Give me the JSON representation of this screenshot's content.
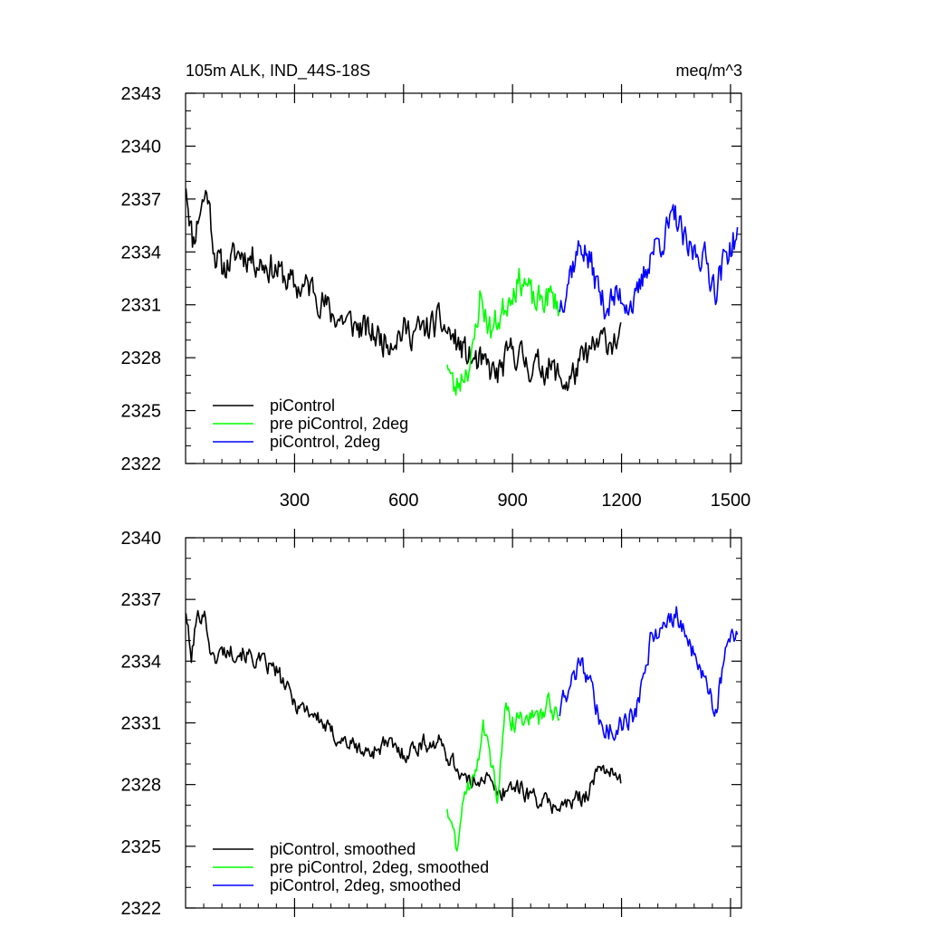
{
  "chart_data": [
    {
      "type": "line",
      "title": "105m ALK, IND_44S-18S",
      "units": "meq/m^3",
      "xlim": [
        0,
        1530
      ],
      "ylim": [
        2322,
        2343
      ],
      "xticks": [
        300,
        600,
        900,
        1200,
        1500
      ],
      "xtick_labels": [
        "300",
        "600",
        "900",
        "1200",
        "1500"
      ],
      "yticks": [
        2322,
        2325,
        2328,
        2331,
        2334,
        2337,
        2340,
        2343
      ],
      "ytick_labels": [
        "2322",
        "2325",
        "2328",
        "2331",
        "2334",
        "2337",
        "2340",
        "2343"
      ],
      "legend_position": "bottom-left",
      "series": [
        {
          "name": "piControl",
          "color": "#000000",
          "x_start": 1,
          "x_end": 1200,
          "anchors": [
            [
              1,
              2338
            ],
            [
              20,
              2334.5
            ],
            [
              40,
              2336.5
            ],
            [
              60,
              2337.5
            ],
            [
              80,
              2334
            ],
            [
              100,
              2333
            ],
            [
              150,
              2334
            ],
            [
              200,
              2333.5
            ],
            [
              250,
              2333
            ],
            [
              300,
              2332
            ],
            [
              350,
              2332
            ],
            [
              400,
              2330.5
            ],
            [
              450,
              2330
            ],
            [
              500,
              2329.5
            ],
            [
              550,
              2329
            ],
            [
              600,
              2329.5
            ],
            [
              650,
              2329.5
            ],
            [
              700,
              2330
            ],
            [
              740,
              2329
            ],
            [
              780,
              2328
            ],
            [
              820,
              2327.5
            ],
            [
              860,
              2327
            ],
            [
              900,
              2328.5
            ],
            [
              950,
              2327.5
            ],
            [
              1000,
              2327.5
            ],
            [
              1050,
              2326.5
            ],
            [
              1100,
              2328
            ],
            [
              1150,
              2329
            ],
            [
              1200,
              2329
            ]
          ],
          "noise": 1.4,
          "seed": 11
        },
        {
          "name": "pre piControl, 2deg",
          "color": "#00ff00",
          "x_start": 720,
          "x_end": 1030,
          "anchors": [
            [
              720,
              2328
            ],
            [
              740,
              2326
            ],
            [
              760,
              2327
            ],
            [
              790,
              2328
            ],
            [
              810,
              2331.5
            ],
            [
              840,
              2329.5
            ],
            [
              870,
              2330.5
            ],
            [
              900,
              2332
            ],
            [
              930,
              2332.5
            ],
            [
              960,
              2331
            ],
            [
              1000,
              2331.5
            ],
            [
              1030,
              2331
            ]
          ],
          "noise": 1.4,
          "seed": 23
        },
        {
          "name": "piControl, 2deg",
          "color": "#0000ff",
          "x_start": 1030,
          "x_end": 1520,
          "anchors": [
            [
              1030,
              2331
            ],
            [
              1060,
              2333
            ],
            [
              1090,
              2334.5
            ],
            [
              1120,
              2333
            ],
            [
              1150,
              2331
            ],
            [
              1200,
              2331.5
            ],
            [
              1240,
              2331
            ],
            [
              1280,
              2334
            ],
            [
              1320,
              2335
            ],
            [
              1350,
              2336
            ],
            [
              1380,
              2334
            ],
            [
              1420,
              2334
            ],
            [
              1460,
              2332
            ],
            [
              1490,
              2334
            ],
            [
              1520,
              2335
            ]
          ],
          "noise": 1.5,
          "seed": 37
        }
      ]
    },
    {
      "type": "line",
      "title": "",
      "xlim": [
        0,
        1530
      ],
      "ylim": [
        2322,
        2340
      ],
      "xticks": [
        300,
        600,
        900,
        1200,
        1500
      ],
      "yticks": [
        2322,
        2325,
        2328,
        2331,
        2334,
        2337,
        2340
      ],
      "ytick_labels": [
        "2322",
        "2325",
        "2328",
        "2331",
        "2334",
        "2337",
        "2340"
      ],
      "legend_position": "bottom-left",
      "series": [
        {
          "name": "piControl, smoothed",
          "color": "#000000",
          "x_start": 1,
          "x_end": 1200,
          "anchors": [
            [
              1,
              2336.5
            ],
            [
              15,
              2334
            ],
            [
              30,
              2336
            ],
            [
              50,
              2336.5
            ],
            [
              75,
              2334
            ],
            [
              100,
              2334.5
            ],
            [
              150,
              2334.5
            ],
            [
              200,
              2334
            ],
            [
              250,
              2333.5
            ],
            [
              300,
              2332
            ],
            [
              350,
              2331.5
            ],
            [
              400,
              2330.5
            ],
            [
              450,
              2330
            ],
            [
              500,
              2329.5
            ],
            [
              550,
              2330
            ],
            [
              600,
              2329.5
            ],
            [
              650,
              2330
            ],
            [
              700,
              2330
            ],
            [
              740,
              2329
            ],
            [
              780,
              2328
            ],
            [
              820,
              2328.5
            ],
            [
              860,
              2327.5
            ],
            [
              900,
              2328
            ],
            [
              950,
              2327.5
            ],
            [
              1000,
              2327
            ],
            [
              1050,
              2327
            ],
            [
              1100,
              2327.5
            ],
            [
              1150,
              2329
            ],
            [
              1200,
              2328
            ]
          ],
          "noise": 0.7,
          "seed": 101
        },
        {
          "name": "pre piControl, 2deg, smoothed",
          "color": "#00ff00",
          "x_start": 720,
          "x_end": 1030,
          "anchors": [
            [
              720,
              2327
            ],
            [
              745,
              2325
            ],
            [
              770,
              2327.5
            ],
            [
              800,
              2329
            ],
            [
              820,
              2331
            ],
            [
              840,
              2329
            ],
            [
              860,
              2327.5
            ],
            [
              880,
              2331.5
            ],
            [
              910,
              2331
            ],
            [
              940,
              2331.5
            ],
            [
              970,
              2331
            ],
            [
              1000,
              2332
            ],
            [
              1030,
              2331
            ]
          ],
          "noise": 0.8,
          "seed": 131
        },
        {
          "name": "piControl, 2deg, smoothed",
          "color": "#0000ff",
          "x_start": 1030,
          "x_end": 1520,
          "anchors": [
            [
              1030,
              2331.5
            ],
            [
              1060,
              2333
            ],
            [
              1090,
              2334
            ],
            [
              1120,
              2332.5
            ],
            [
              1150,
              2330.5
            ],
            [
              1200,
              2331
            ],
            [
              1240,
              2331.5
            ],
            [
              1280,
              2335
            ],
            [
              1320,
              2335.5
            ],
            [
              1350,
              2336.5
            ],
            [
              1380,
              2335
            ],
            [
              1420,
              2333.5
            ],
            [
              1460,
              2331.5
            ],
            [
              1490,
              2335
            ],
            [
              1520,
              2335
            ]
          ],
          "noise": 0.8,
          "seed": 171
        }
      ]
    }
  ]
}
